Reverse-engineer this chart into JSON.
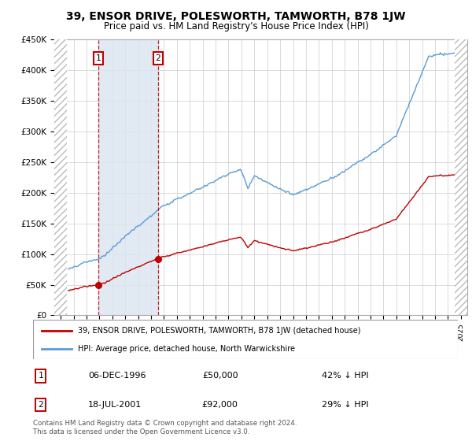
{
  "title": "39, ENSOR DRIVE, POLESWORTH, TAMWORTH, B78 1JW",
  "subtitle": "Price paid vs. HM Land Registry's House Price Index (HPI)",
  "legend_line1": "39, ENSOR DRIVE, POLESWORTH, TAMWORTH, B78 1JW (detached house)",
  "legend_line2": "HPI: Average price, detached house, North Warwickshire",
  "footnote": "Contains HM Land Registry data © Crown copyright and database right 2024.\nThis data is licensed under the Open Government Licence v3.0.",
  "sale1_date": "06-DEC-1996",
  "sale1_price": 50000,
  "sale1_label": "£50,000",
  "sale1_pct": "42% ↓ HPI",
  "sale2_date": "18-JUL-2001",
  "sale2_price": 92000,
  "sale2_label": "£92,000",
  "sale2_pct": "29% ↓ HPI",
  "sale1_x": 1996.92,
  "sale2_x": 2001.54,
  "ylim_min": 0,
  "ylim_max": 450000,
  "xlim_min": 1993.5,
  "xlim_max": 2025.5,
  "hpi_color": "#5b9bd5",
  "price_color": "#c00000",
  "bg_color": "#ffffff",
  "shade_color": "#dce6f1",
  "grid_color": "#cccccc",
  "hatch_left_end": 1994.5,
  "hatch_right_start": 2024.5,
  "data_start": 1994.5,
  "data_end": 2024.5
}
